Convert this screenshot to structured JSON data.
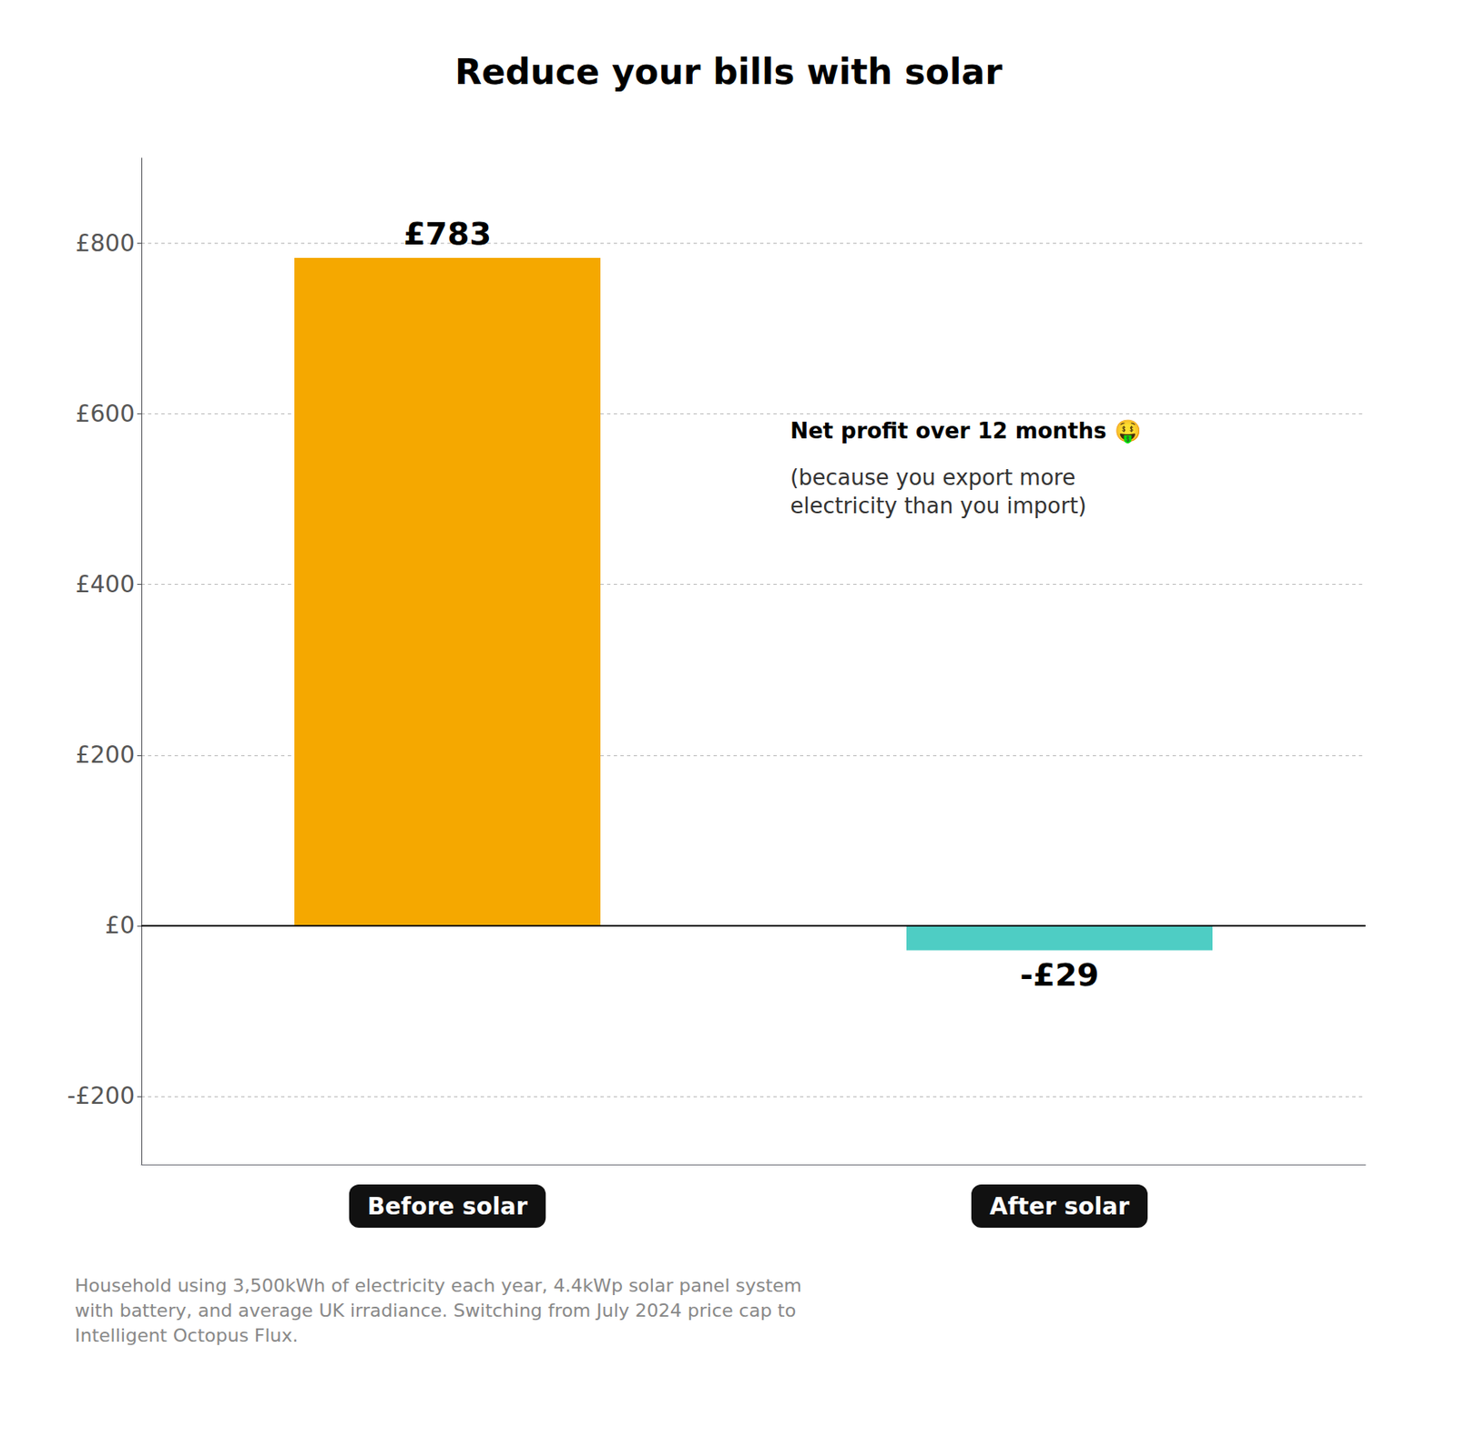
{
  "chart_data": {
    "type": "bar",
    "title": "Reduce your bills with solar",
    "categories": [
      "Before solar",
      "After solar"
    ],
    "values": [
      783,
      -29
    ],
    "value_labels": [
      "£783",
      "-£29"
    ],
    "data_labels": true,
    "colors": [
      "#F5A800",
      "#4ECDC4"
    ],
    "ylim": [
      -280,
      900
    ],
    "yticks": [
      {
        "value": -200,
        "label": "-£200"
      },
      {
        "value": 0,
        "label": "£0"
      },
      {
        "value": 200,
        "label": "£200"
      },
      {
        "value": 400,
        "label": "£400"
      },
      {
        "value": 600,
        "label": "£600"
      },
      {
        "value": 800,
        "label": "£800"
      }
    ],
    "grid": true,
    "annotations": [
      "Net profit over 12 months 🤑",
      "(because you export more\nelectricity than you import)"
    ],
    "footer": "Household using 3,500kWh of electricity each year, 4.4kWp solar panel system\nwith battery, and average UK irradiance. Switching from July 2024 price cap to\nIntelligent Octopus Flux."
  }
}
